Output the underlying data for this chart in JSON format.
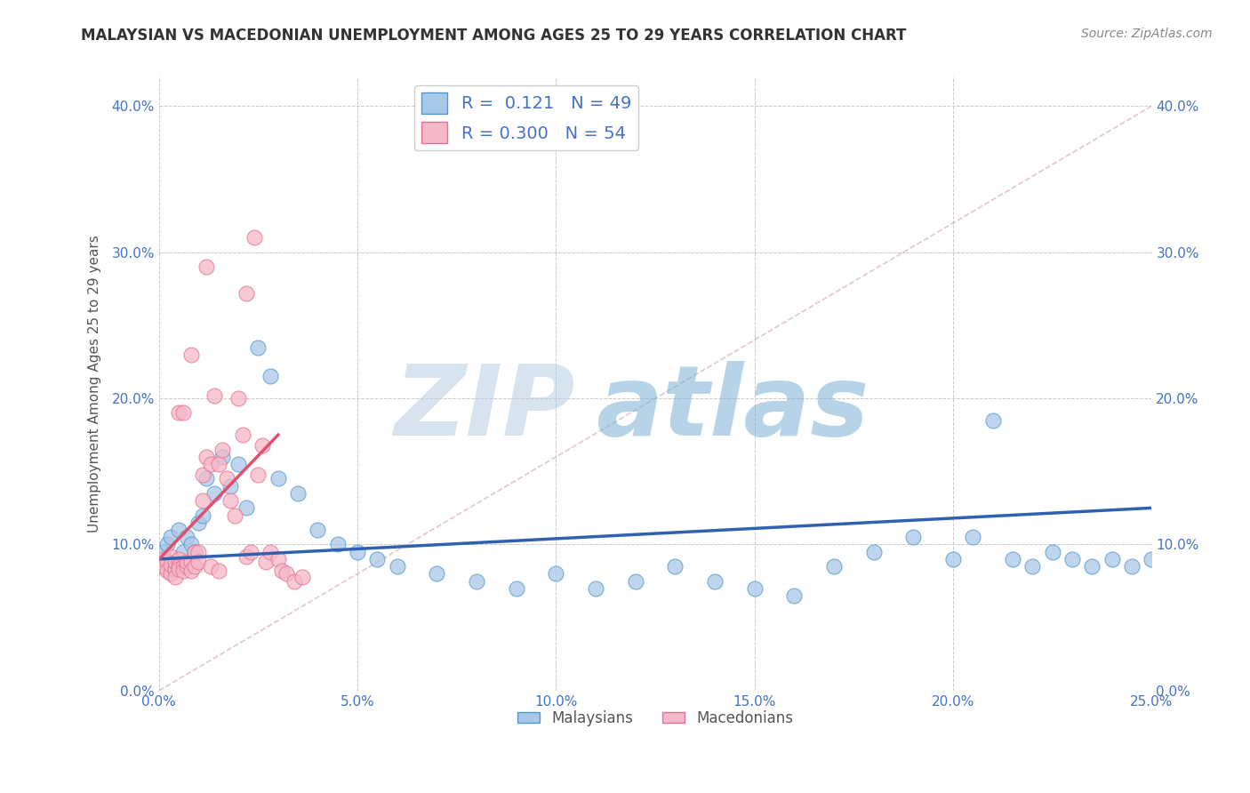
{
  "title": "MALAYSIAN VS MACEDONIAN UNEMPLOYMENT AMONG AGES 25 TO 29 YEARS CORRELATION CHART",
  "source_text": "Source: ZipAtlas.com",
  "ylabel": "Unemployment Among Ages 25 to 29 years",
  "xlim": [
    0.0,
    0.25
  ],
  "ylim": [
    0.0,
    0.42
  ],
  "xticks": [
    0.0,
    0.05,
    0.1,
    0.15,
    0.2,
    0.25
  ],
  "xticklabels": [
    "0.0%",
    "5.0%",
    "10.0%",
    "15.0%",
    "20.0%",
    "25.0%"
  ],
  "yticks": [
    0.0,
    0.1,
    0.2,
    0.3,
    0.4
  ],
  "yticklabels": [
    "0.0%",
    "10.0%",
    "20.0%",
    "30.0%",
    "40.0%"
  ],
  "malaysian_color": "#a8c8e8",
  "macedonian_color": "#f4b8c8",
  "malaysian_edge": "#5599cc",
  "macedonian_edge": "#e87090",
  "trend_blue": "#3060b0",
  "trend_pink": "#e05070",
  "R_malaysian": 0.121,
  "N_malaysian": 49,
  "R_macedonian": 0.3,
  "N_macedonian": 54,
  "watermark_zip": "ZIP",
  "watermark_atlas": "atlas",
  "background_color": "#ffffff",
  "grid_color": "#c8c8c8",
  "malaysians_x": [
    0.001,
    0.002,
    0.003,
    0.005,
    0.006,
    0.007,
    0.008,
    0.009,
    0.01,
    0.011,
    0.012,
    0.014,
    0.016,
    0.018,
    0.02,
    0.022,
    0.025,
    0.028,
    0.03,
    0.035,
    0.04,
    0.045,
    0.05,
    0.055,
    0.06,
    0.07,
    0.08,
    0.09,
    0.1,
    0.11,
    0.12,
    0.13,
    0.14,
    0.15,
    0.16,
    0.17,
    0.18,
    0.19,
    0.2,
    0.205,
    0.21,
    0.215,
    0.22,
    0.225,
    0.23,
    0.235,
    0.24,
    0.245,
    0.25
  ],
  "malaysians_y": [
    0.095,
    0.1,
    0.105,
    0.11,
    0.095,
    0.105,
    0.1,
    0.095,
    0.115,
    0.12,
    0.145,
    0.135,
    0.16,
    0.14,
    0.155,
    0.125,
    0.235,
    0.215,
    0.145,
    0.135,
    0.11,
    0.1,
    0.095,
    0.09,
    0.085,
    0.08,
    0.075,
    0.07,
    0.08,
    0.07,
    0.075,
    0.085,
    0.075,
    0.07,
    0.065,
    0.085,
    0.095,
    0.105,
    0.09,
    0.105,
    0.185,
    0.09,
    0.085,
    0.095,
    0.09,
    0.085,
    0.09,
    0.085,
    0.09
  ],
  "macedonians_x": [
    0.001,
    0.001,
    0.002,
    0.002,
    0.003,
    0.003,
    0.003,
    0.004,
    0.004,
    0.004,
    0.005,
    0.005,
    0.005,
    0.005,
    0.006,
    0.006,
    0.006,
    0.007,
    0.007,
    0.008,
    0.008,
    0.008,
    0.009,
    0.009,
    0.01,
    0.01,
    0.011,
    0.011,
    0.012,
    0.012,
    0.013,
    0.013,
    0.014,
    0.015,
    0.015,
    0.016,
    0.017,
    0.018,
    0.019,
    0.02,
    0.021,
    0.022,
    0.022,
    0.023,
    0.024,
    0.025,
    0.026,
    0.027,
    0.028,
    0.03,
    0.031,
    0.032,
    0.034,
    0.036
  ],
  "macedonians_y": [
    0.09,
    0.085,
    0.088,
    0.082,
    0.092,
    0.08,
    0.086,
    0.083,
    0.088,
    0.078,
    0.09,
    0.085,
    0.083,
    0.19,
    0.085,
    0.19,
    0.082,
    0.085,
    0.088,
    0.088,
    0.23,
    0.082,
    0.095,
    0.085,
    0.095,
    0.088,
    0.148,
    0.13,
    0.29,
    0.16,
    0.155,
    0.085,
    0.202,
    0.155,
    0.082,
    0.165,
    0.145,
    0.13,
    0.12,
    0.2,
    0.175,
    0.272,
    0.092,
    0.095,
    0.31,
    0.148,
    0.168,
    0.088,
    0.095,
    0.09,
    0.082,
    0.08,
    0.075,
    0.078
  ],
  "blue_trend_x": [
    0.0,
    0.25
  ],
  "blue_trend_y": [
    0.09,
    0.125
  ],
  "pink_trend_x": [
    0.0,
    0.03
  ],
  "pink_trend_y": [
    0.09,
    0.175
  ],
  "ref_line_x": [
    0.0,
    0.25
  ],
  "ref_line_y": [
    0.0,
    0.4
  ]
}
